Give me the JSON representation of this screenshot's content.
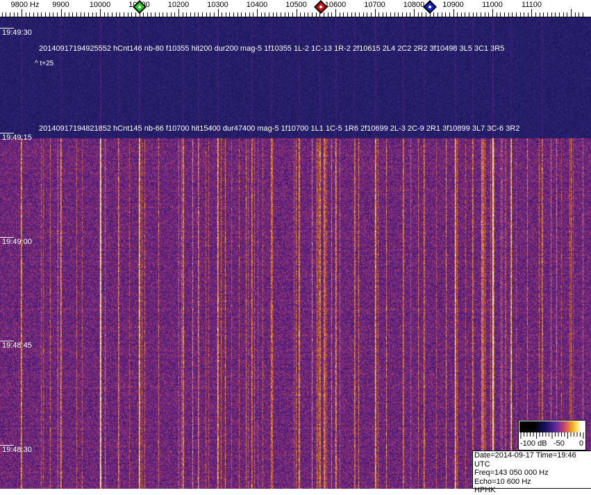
{
  "frequency_axis": {
    "labels": [
      "9800 Hz",
      "9900",
      "10000",
      "10100",
      "10200",
      "10300",
      "10400",
      "10500",
      "10600",
      "10700",
      "10800",
      "10900",
      "11000",
      "11100"
    ],
    "start_hz": 9800,
    "step_hz": 100
  },
  "markers": [
    {
      "name": "green-marker",
      "color": "#22cc22",
      "hz": 10100
    },
    {
      "name": "red-marker",
      "color": "#cc1111",
      "hz": 10563
    },
    {
      "name": "blue-marker",
      "color": "#1122cc",
      "hz": 10840
    }
  ],
  "time_labels": [
    "19:49:30",
    "19:49:15",
    "19:49:00",
    "19:48:45",
    "19:48:30"
  ],
  "detections": [
    "20140917194925552 hCnt146 nb-80 f10355 hit200 dur200 mag-5 1f10355 1L-2 1C-13 1R-2 2f10615 2L4 2C2 2R2 3f10498 3L5 3C1 3R5",
    "20140917194821852 hCnt145 nb-66 f10700 hit15400 dur47400 mag-5 1f10700 1L1 1C-5 1R6 2f10699 2L-3 2C-9 2R1 3f10899 3L7 3C-6 3R2"
  ],
  "time_offset": "^ t+25",
  "color_scale": {
    "labels": [
      "-100 dB",
      "-50",
      "0"
    ]
  },
  "info": {
    "date_time": "Date=2014-09-17 Time=19:46 UTC",
    "freq": "Freq=143 050 000 Hz",
    "echo": "Echo=10 600 Hz",
    "station": "HPHK"
  }
}
